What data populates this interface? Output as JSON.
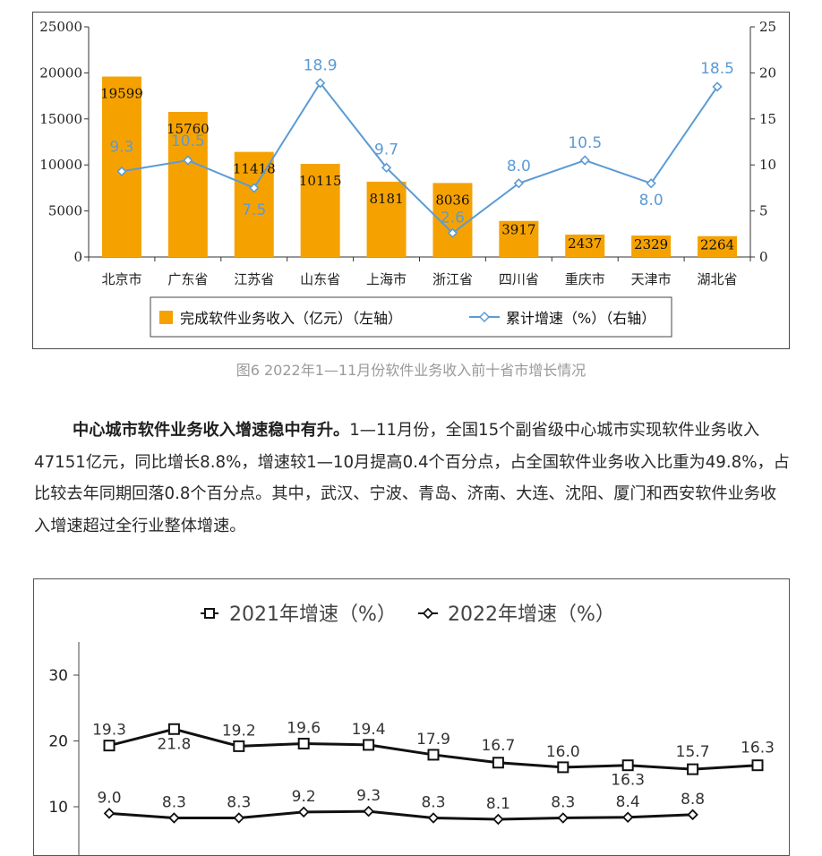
{
  "chart_data": [
    {
      "type": "bar",
      "categories": [
        "北京市",
        "广东省",
        "江苏省",
        "山东省",
        "上海市",
        "浙江省",
        "四川省",
        "重庆市",
        "天津市",
        "湖北省"
      ],
      "series": [
        {
          "name": "完成软件业务收入（亿元）（左轴）",
          "type": "bar",
          "axis": "left",
          "values": [
            19599,
            15760,
            11418,
            10115,
            8181,
            8036,
            3917,
            2437,
            2329,
            2264
          ]
        },
        {
          "name": "累计增速（%）（右轴）",
          "type": "line",
          "axis": "right",
          "values": [
            9.3,
            10.5,
            7.5,
            18.9,
            9.7,
            2.6,
            8.0,
            10.5,
            8.0,
            18.5
          ]
        }
      ],
      "y_left_ticks": [
        "0",
        "5000",
        "10000",
        "15000",
        "20000",
        "25000"
      ],
      "y_right_ticks": [
        "0",
        "5",
        "10",
        "15",
        "20",
        "25"
      ],
      "ylim_left": [
        0,
        25000
      ],
      "ylim_right": [
        0,
        25
      ],
      "legend_position": "bottom",
      "colors": {
        "bar": "#f5a200",
        "line": "#5b9bd5"
      }
    },
    {
      "type": "line",
      "y_ticks": [
        "10",
        "20",
        "30"
      ],
      "series": [
        {
          "name": "2021年增速（%）",
          "marker": "square",
          "values": [
            19.3,
            21.8,
            19.2,
            19.6,
            19.4,
            17.9,
            16.7,
            16.0,
            16.3,
            15.7,
            16.3
          ]
        },
        {
          "name": "2022年增速（%）",
          "marker": "diamond",
          "values": [
            9.0,
            8.3,
            8.3,
            9.2,
            9.3,
            8.3,
            8.1,
            8.3,
            8.4,
            8.8
          ]
        }
      ],
      "legend_position": "top",
      "colors": {
        "line": "#111111"
      }
    }
  ],
  "caption": "图6  2022年1—11月份软件业务收入前十省市增长情况",
  "paragraph": {
    "bold": "中心城市软件业务收入增速稳中有升。",
    "text": "1—11月份，全国15个副省级中心城市实现软件业务收入47151亿元，同比增长8.8%，增速较1—10月提高0.4个百分点，占全国软件业务收入比重为49.8%，占比较去年同期回落0.8个百分点。其中，武汉、宁波、青岛、济南、大连、沈阳、厦门和西安软件业务收入增速超过全行业整体增速。"
  }
}
